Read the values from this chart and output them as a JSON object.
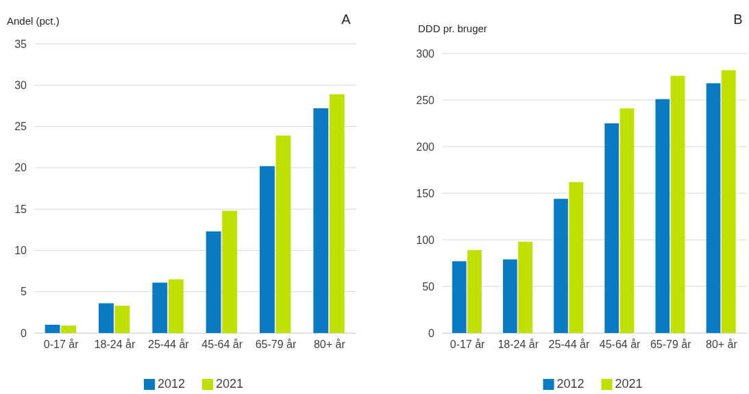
{
  "chart_data": [
    {
      "type": "bar",
      "title": "A",
      "ylabel": "Andel (pct.)",
      "categories": [
        "0-17 år",
        "18-24 år",
        "25-44 år",
        "45-64 år",
        "65-79 år",
        "80+ år"
      ],
      "series": [
        {
          "name": "2012",
          "color": "#0a7bc2",
          "values": [
            1.0,
            3.6,
            6.1,
            12.3,
            20.2,
            27.2
          ]
        },
        {
          "name": "2021",
          "color": "#c0e000",
          "values": [
            0.9,
            3.3,
            6.5,
            14.8,
            23.9,
            28.9
          ]
        }
      ],
      "ylim": [
        0,
        35
      ],
      "yticks": [
        0,
        5,
        10,
        15,
        20,
        25,
        30,
        35
      ],
      "grid": "y",
      "legend": "bottom"
    },
    {
      "type": "bar",
      "title": "B",
      "ylabel": "DDD pr. bruger",
      "categories": [
        "0-17 år",
        "18-24 år",
        "25-44 år",
        "45-64 år",
        "65-79 år",
        "80+ år"
      ],
      "series": [
        {
          "name": "2012",
          "color": "#0a7bc2",
          "values": [
            77,
            79,
            144,
            225,
            251,
            268
          ]
        },
        {
          "name": "2021",
          "color": "#c0e000",
          "values": [
            89,
            98,
            162,
            241,
            276,
            282
          ]
        }
      ],
      "ylim": [
        0,
        300
      ],
      "yticks": [
        0,
        50,
        100,
        150,
        200,
        250,
        300
      ],
      "grid": "y",
      "legend": "bottom"
    }
  ]
}
